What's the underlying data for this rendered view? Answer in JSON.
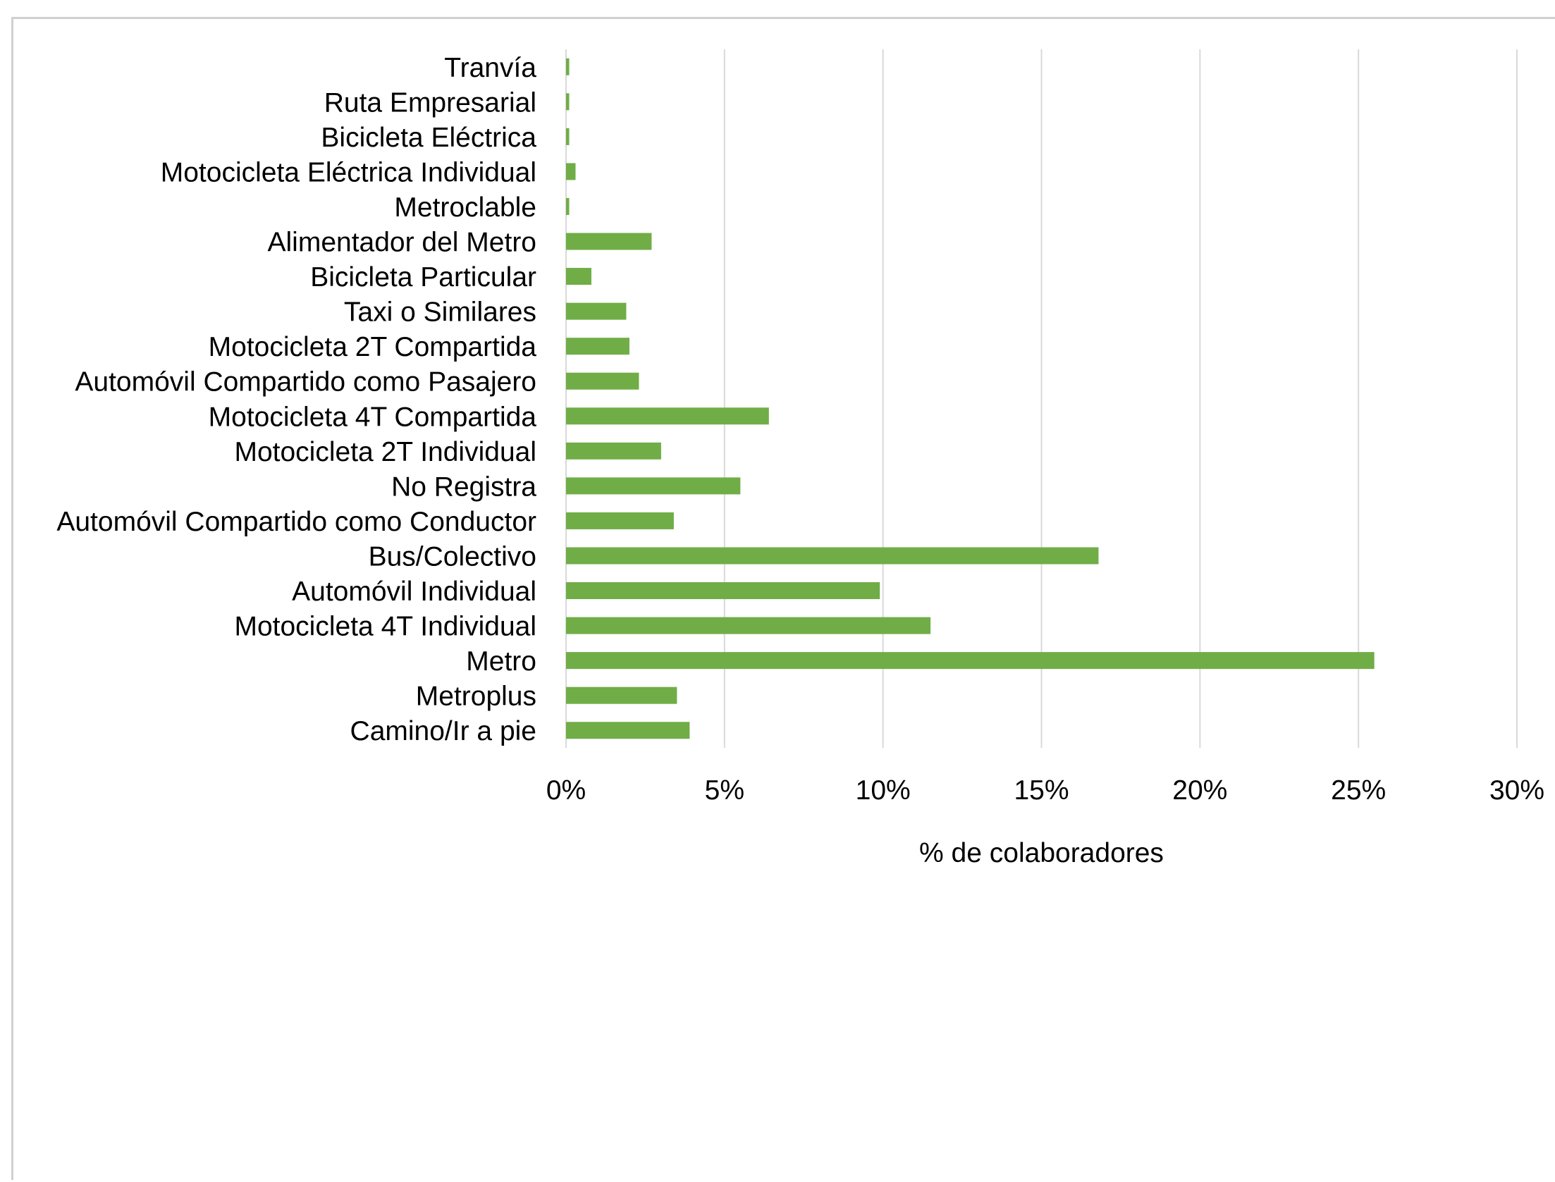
{
  "chart_data": {
    "type": "bar",
    "orientation": "horizontal",
    "categories": [
      "Tranvía",
      "Ruta Empresarial",
      "Bicicleta Eléctrica",
      "Motocicleta Eléctrica Individual",
      "Metroclable",
      "Alimentador del Metro",
      "Bicicleta Particular",
      "Taxi o Similares",
      "Motocicleta 2T Compartida",
      "Automóvil Compartido como Pasajero",
      "Motocicleta 4T Compartida",
      "Motocicleta 2T Individual",
      "No Registra",
      "Automóvil Compartido como Conductor",
      "Bus/Colectivo",
      "Automóvil Individual",
      "Motocicleta 4T Individual",
      "Metro",
      "Metroplus",
      "Camino/Ir a pie"
    ],
    "values": [
      0.1,
      0.1,
      0.1,
      0.3,
      0.1,
      2.7,
      0.8,
      1.9,
      2.0,
      2.3,
      6.4,
      3.0,
      5.5,
      3.4,
      16.8,
      9.9,
      11.5,
      25.5,
      3.5,
      3.9
    ],
    "xlabel": "% de colaboradores",
    "ylabel": "",
    "title": "",
    "xlim": [
      0,
      30
    ],
    "xticks": [
      "0%",
      "5%",
      "10%",
      "15%",
      "20%",
      "25%",
      "30%"
    ],
    "grid": "vertical",
    "legend": "none",
    "bar_color": "#70ad47",
    "grid_color": "#d9d9d9"
  }
}
